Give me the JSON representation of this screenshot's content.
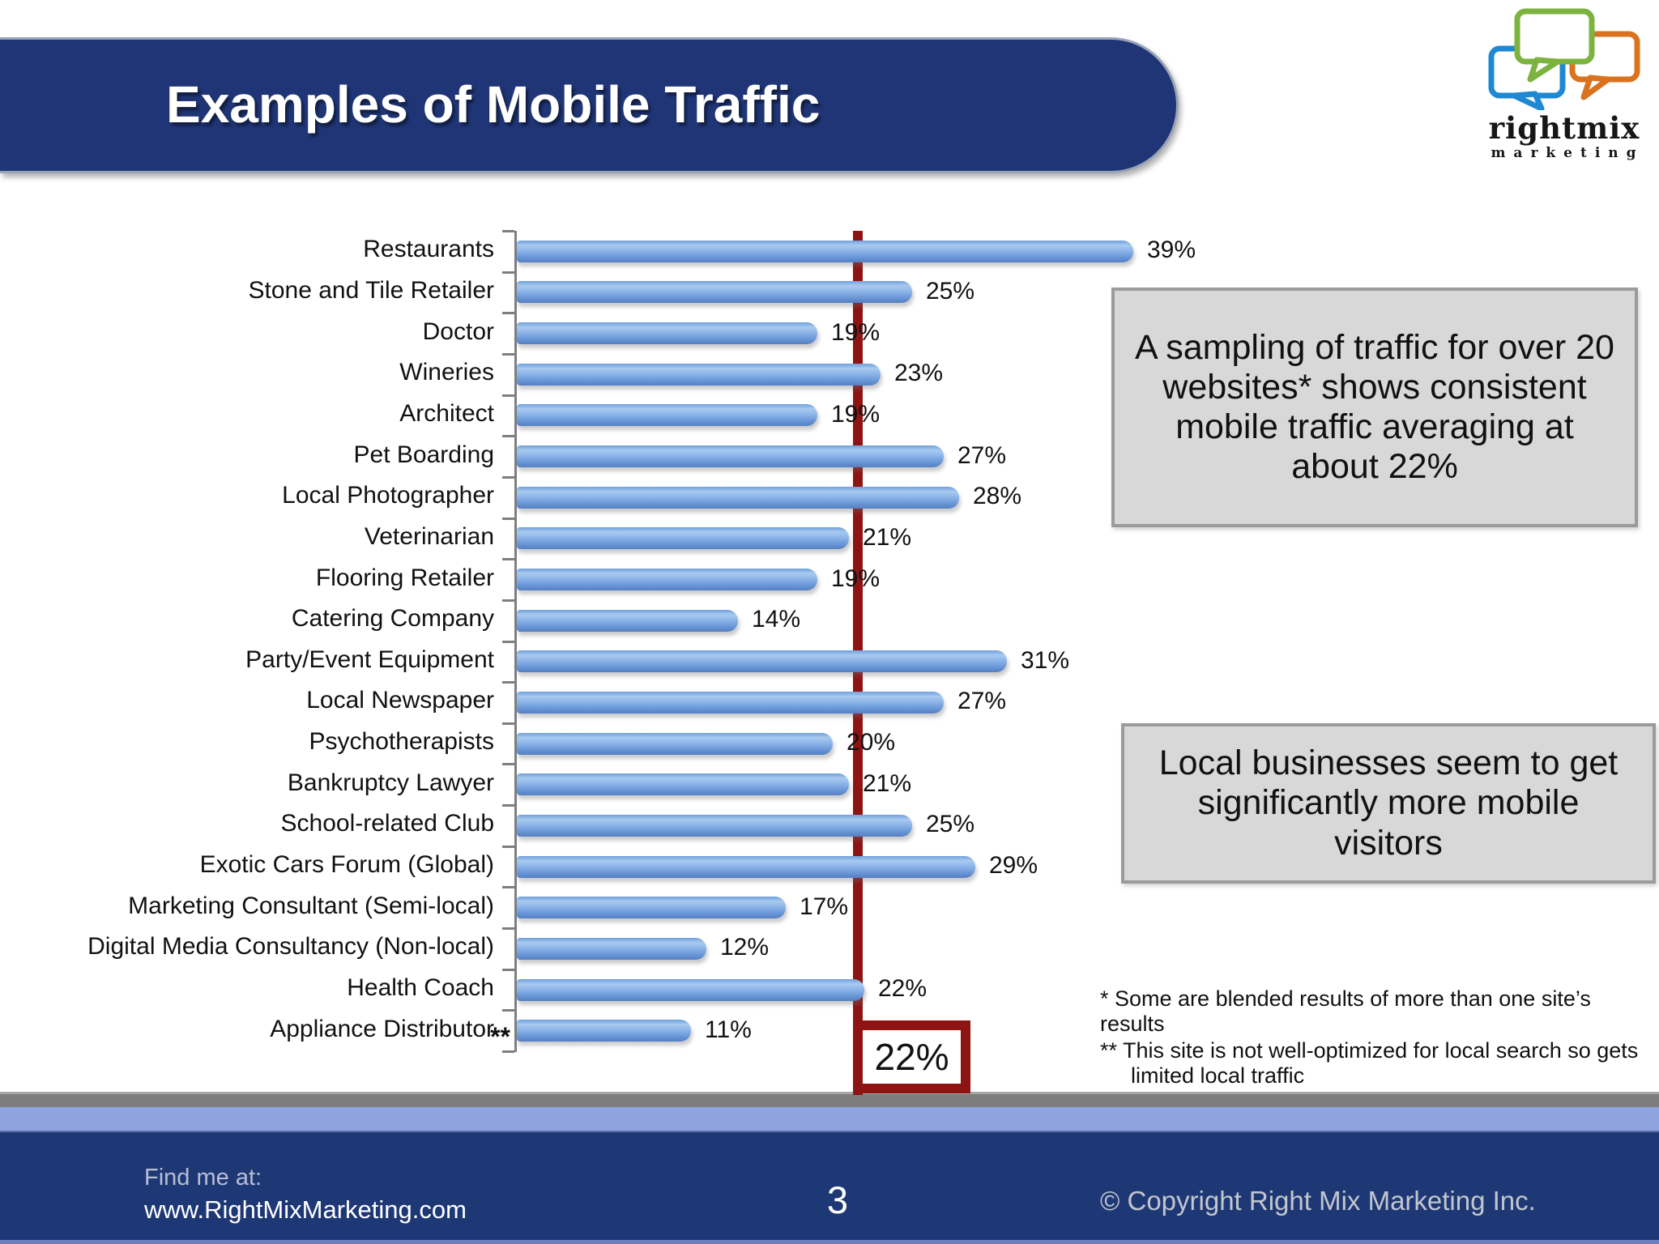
{
  "slide": {
    "title": "Examples of Mobile Traffic",
    "page_number": "3",
    "logo": {
      "name": "rightmix",
      "tagline": "marketing"
    },
    "footer": {
      "find_me_label": "Find me at:",
      "website": "www.RightMixMarketing.com",
      "copyright": "© Copyright Right Mix Marketing Inc."
    }
  },
  "callouts": {
    "sampling": "A sampling of traffic for over 20 websites* shows consistent mobile traffic averaging at about 22%",
    "local": "Local businesses seem to get significantly more mobile visitors"
  },
  "footnotes": [
    "* Some are blended results of more than one site’s results",
    "** This site is not well-optimized for local search so gets limited local traffic"
  ],
  "chart_data": {
    "type": "bar",
    "orientation": "horizontal",
    "title": "",
    "xlabel": "",
    "ylabel": "",
    "xlim": [
      0,
      40
    ],
    "grid": false,
    "legend": "none",
    "value_suffix": "%",
    "bar_color": "#6e9bdc",
    "categories": [
      "Restaurants",
      "Stone and Tile Retailer",
      "Doctor",
      "Wineries",
      "Architect",
      "Pet Boarding",
      "Local Photographer",
      "Veterinarian",
      "Flooring Retailer",
      "Catering Company",
      "Party/Event Equipment",
      "Local Newspaper",
      "Psychotherapists",
      "Bankruptcy Lawyer",
      "School-related Club",
      "Exotic Cars Forum (Global)",
      "Marketing Consultant (Semi-local)",
      "Digital Media Consultancy (Non-local)",
      "Health Coach",
      "Appliance Distributor"
    ],
    "values": [
      39,
      25,
      19,
      23,
      19,
      27,
      28,
      21,
      19,
      14,
      31,
      27,
      20,
      21,
      25,
      29,
      17,
      12,
      22,
      11
    ],
    "value_labels": [
      "39%",
      "25%",
      "19%",
      "23%",
      "19%",
      "27%",
      "28%",
      "21%",
      "19%",
      "14%",
      "31%",
      "27%",
      "20%",
      "21%",
      "25%",
      "29%",
      "17%",
      "12%",
      "22%",
      "11%"
    ],
    "reference_line": {
      "value": 22,
      "label": "22%",
      "color": "#8e1414"
    },
    "axis_note": "**"
  }
}
